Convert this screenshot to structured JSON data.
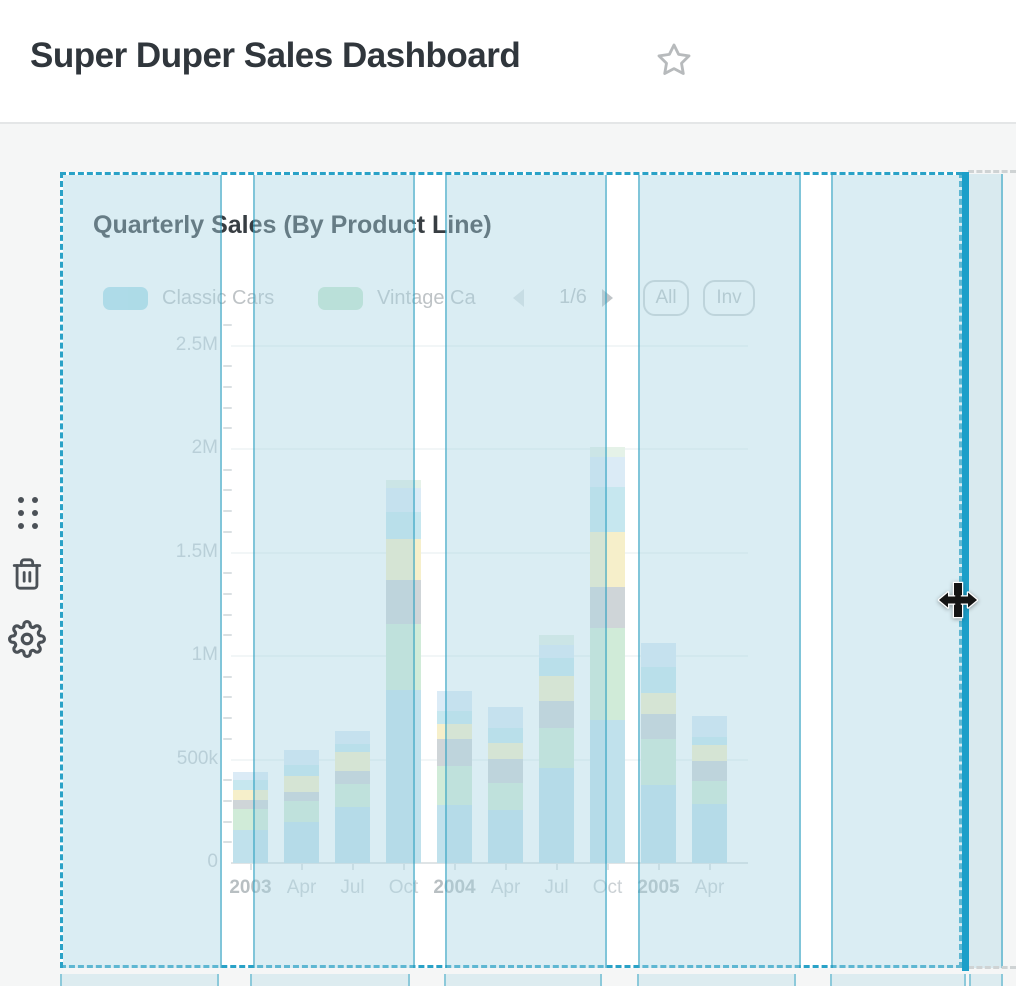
{
  "header": {
    "title": "Super Duper Sales Dashboard",
    "favorite_icon": "star-icon"
  },
  "side_toolbar": {
    "drag_icon": "drag-handle-icon",
    "remove_icon": "trash-icon",
    "settings_icon": "gear-icon"
  },
  "card": {
    "title": "Quarterly Sales (By Product Line)",
    "legend": {
      "items": [
        {
          "label": "Classic Cars",
          "color": "#75c7dc"
        },
        {
          "label": "Vintage Ca",
          "color": "#9cd6ae"
        }
      ],
      "pagination": {
        "display": "1/6",
        "prev_icon": "chevron-left-icon",
        "next_icon": "chevron-right-icon",
        "prev_enabled": false,
        "next_enabled": true
      },
      "select_all_label": "All",
      "invert_label": "Inv"
    },
    "chart_data": {
      "type": "bar",
      "stacked": true,
      "title": "Quarterly Sales (By Product Line)",
      "legend_position": "top",
      "grid": "horizontal-major",
      "x_labels": [
        "2003",
        "Apr",
        "Jul",
        "Oct",
        "2004",
        "Apr",
        "Jul",
        "Oct",
        "2005",
        "Apr"
      ],
      "x_bold": [
        true,
        false,
        false,
        false,
        true,
        false,
        false,
        false,
        true,
        false
      ],
      "y_ticks": [
        {
          "label": "0",
          "value_k": 0
        },
        {
          "label": "500k",
          "value_k": 500
        },
        {
          "label": "1M",
          "value_k": 1000
        },
        {
          "label": "1.5M",
          "value_k": 1500
        },
        {
          "label": "2M",
          "value_k": 2000
        },
        {
          "label": "2.5M",
          "value_k": 2500
        }
      ],
      "ylim_k": [
        0,
        2600
      ],
      "units": "values_k are thousands, read from axis",
      "series": [
        {
          "name": "Classic Cars",
          "color": "#8ecadd",
          "values_k": [
            160,
            200,
            270,
            835,
            280,
            255,
            460,
            690,
            375,
            285
          ]
        },
        {
          "name": "Vintage Ca",
          "color": "#abdcb9",
          "values_k": [
            100,
            100,
            110,
            320,
            190,
            130,
            190,
            445,
            225,
            110
          ]
        },
        {
          "name": "",
          "color": "#a9b4ba",
          "values_k": [
            42,
            45,
            65,
            210,
            130,
            118,
            135,
            197,
            120,
            100
          ]
        },
        {
          "name": "",
          "color": "#f0e3a0",
          "values_k": [
            52,
            73,
            89,
            200,
            72,
            76,
            118,
            266,
            100,
            77
          ]
        },
        {
          "name": "",
          "color": "#99d5e2",
          "values_k": [
            45,
            56,
            43,
            130,
            60,
            74,
            88,
            220,
            125,
            36
          ]
        },
        {
          "name": "",
          "color": "#bfdcf0",
          "values_k": [
            39,
            72,
            61,
            115,
            100,
            100,
            64,
            142,
            120,
            100
          ]
        },
        {
          "name": "",
          "color": "#d0e9d6",
          "values_k": [
            0,
            0,
            0,
            40,
            0,
            0,
            45,
            48,
            0,
            0
          ]
        }
      ],
      "quarter_totals_k": [
        438,
        546,
        638,
        1850,
        832,
        753,
        1100,
        2008,
        1065,
        708
      ]
    }
  },
  "colors": {
    "selection_accent": "#2aa2c7",
    "resize_handle": "#1c9fc9",
    "grid_tint": "#a7d4e2",
    "page_background": "#f5f6f6"
  },
  "cursor": {
    "icon": "move-cursor-icon"
  }
}
